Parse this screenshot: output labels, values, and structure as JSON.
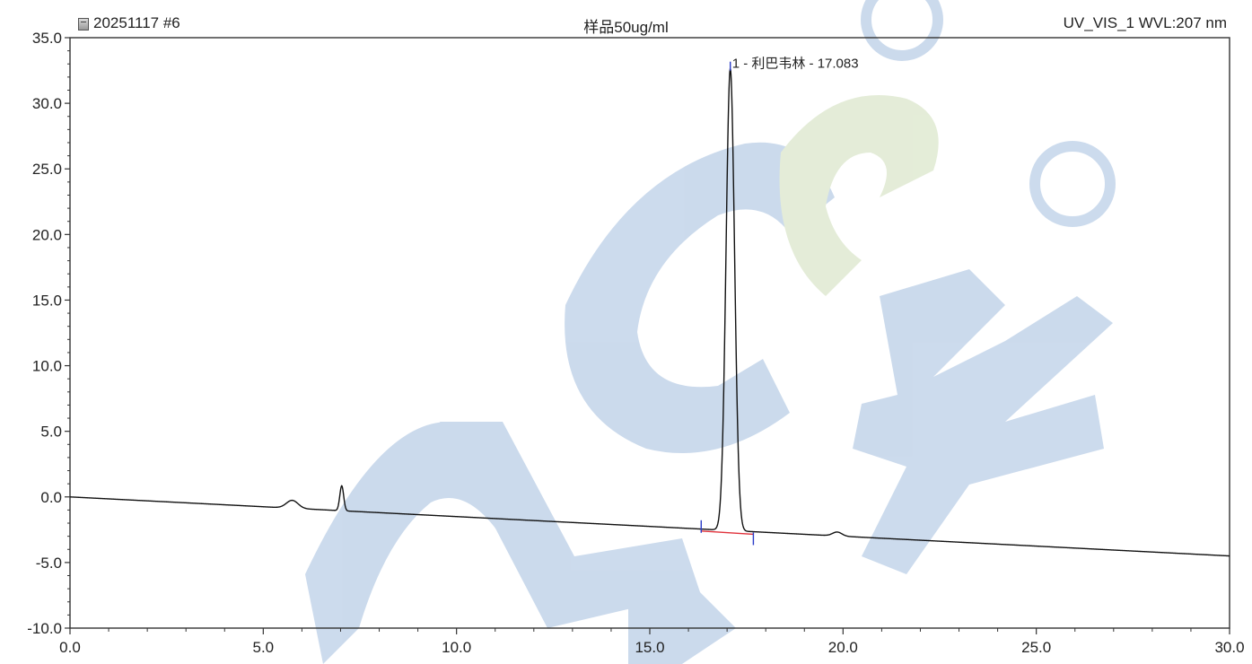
{
  "header": {
    "sample_id": "20251117 #6",
    "sample_name": "样品50ug/ml",
    "channel": "UV_VIS_1 WVL:207 nm"
  },
  "colors": {
    "trace": "#111111",
    "baseline": "#e0303a",
    "peak_marker": "#2a3cc8",
    "axis": "#333333",
    "watermark_blue": "#c9d9ec",
    "watermark_green": "#e3ecd6"
  },
  "chart_data": {
    "type": "line",
    "title": "",
    "xlabel": "",
    "ylabel": "",
    "xlim": [
      0.0,
      30.0
    ],
    "ylim": [
      -10.0,
      35.0
    ],
    "x_ticks": [
      "0.0",
      "5.0",
      "10.0",
      "15.0",
      "20.0",
      "25.0",
      "30.0"
    ],
    "y_ticks": [
      "35.0",
      "30.0",
      "25.0",
      "20.0",
      "15.0",
      "10.0",
      "5.0",
      "0.0",
      "-5.0",
      "-10.0"
    ],
    "series": [
      {
        "baseline": {
          "start": [
            0.0,
            0.0
          ],
          "end": [
            30.0,
            -4.5
          ]
        },
        "peaks": [
          {
            "rt": 5.75,
            "height": 0.6,
            "sigma": 0.15
          },
          {
            "rt": 7.03,
            "height": 1.9,
            "sigma": 0.05
          },
          {
            "rt": 17.083,
            "height": 35.2,
            "sigma": 0.11
          },
          {
            "rt": 19.85,
            "height": 0.3,
            "sigma": 0.12
          }
        ]
      }
    ],
    "integration": {
      "start": [
        16.33,
        -2.6
      ],
      "end": [
        17.68,
        -2.85
      ]
    },
    "annotations": [
      {
        "x": 17.083,
        "y": 32.9,
        "text": "1 - 利巴韦林 - 17.083"
      }
    ],
    "grid": false
  }
}
